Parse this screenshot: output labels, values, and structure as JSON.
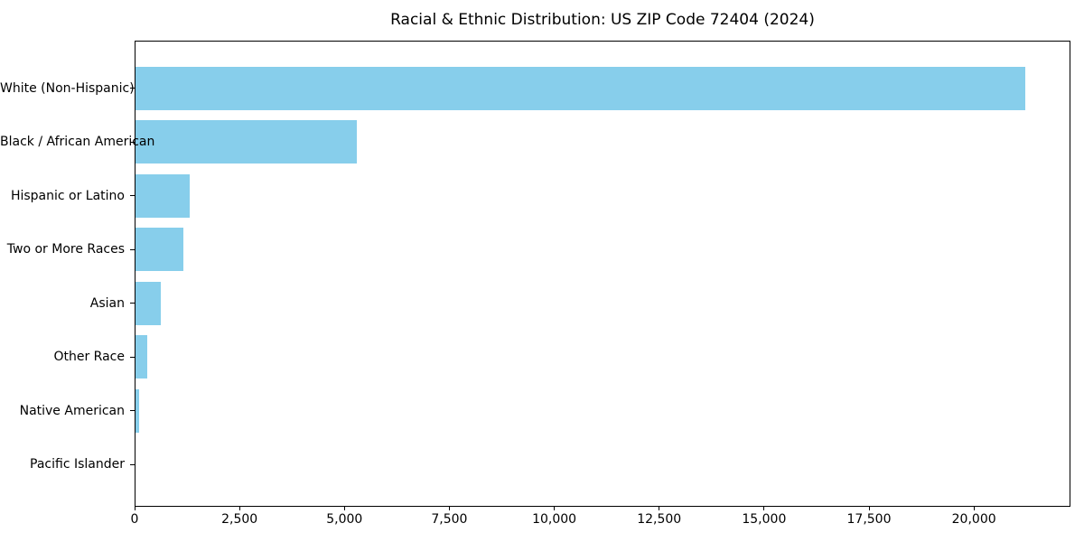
{
  "figure": {
    "title": "Racial & Ethnic Distribution: US ZIP Code 72404 (2024)"
  },
  "chart_data": {
    "type": "bar",
    "orientation": "horizontal",
    "title": "Racial & Ethnic Distribution: US ZIP Code 72404 (2024)",
    "categories": [
      "White (Non-Hispanic)",
      "Black / African American",
      "Hispanic or Latino",
      "Two or More Races",
      "Asian",
      "Other Race",
      "Native American",
      "Pacific Islander"
    ],
    "values": [
      21250,
      5290,
      1300,
      1150,
      600,
      290,
      90,
      0
    ],
    "xlabel": "",
    "ylabel": "",
    "xlim": [
      0,
      22300
    ],
    "x_ticks": [
      0,
      2500,
      5000,
      7500,
      10000,
      12500,
      15000,
      17500,
      20000
    ],
    "x_tick_labels": [
      "0",
      "2,500",
      "5,000",
      "7,500",
      "10,000",
      "12,500",
      "15,000",
      "17,500",
      "20,000"
    ],
    "bar_color": "#87CEEB",
    "axis_color": "#000000",
    "background_color": "#FFFFFF",
    "grid": false,
    "legend": "none",
    "sort_order": "descending_top_to_bottom"
  }
}
